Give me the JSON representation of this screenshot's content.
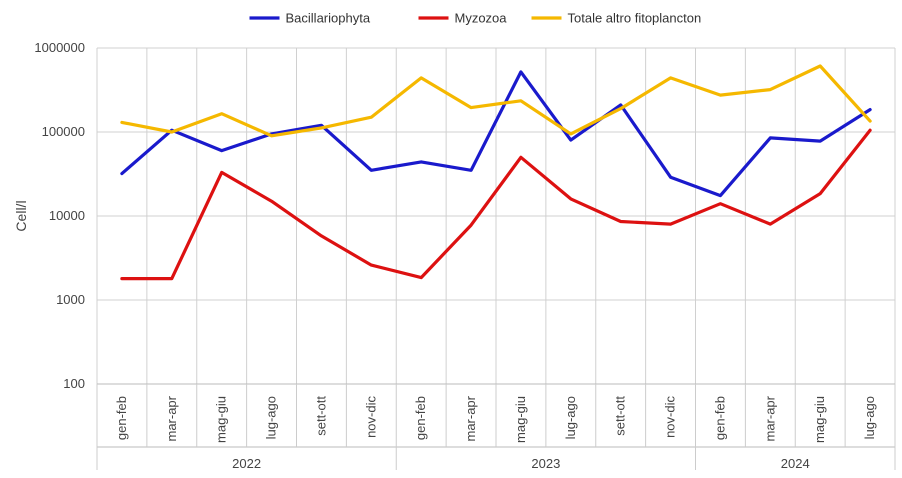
{
  "chart_data": {
    "type": "line",
    "y_scale": "log",
    "ylim": [
      100,
      1000000
    ],
    "ylabel": "Cell/l",
    "y_ticks": [
      100,
      1000,
      10000,
      100000,
      1000000
    ],
    "y_tick_labels": [
      "100",
      "1000",
      "10000",
      "100000",
      "1000000"
    ],
    "categories": [
      "gen-feb",
      "mar-apr",
      "mag-giu",
      "lug-ago",
      "sett-ott",
      "nov-dic",
      "gen-feb",
      "mar-apr",
      "mag-giu",
      "lug-ago",
      "sett-ott",
      "nov-dic",
      "gen-feb",
      "mar-apr",
      "mag-giu",
      "lug-ago"
    ],
    "groups": [
      {
        "label": "2022",
        "start": 0,
        "end": 5
      },
      {
        "label": "2023",
        "start": 6,
        "end": 11
      },
      {
        "label": "2024",
        "start": 12,
        "end": 15
      }
    ],
    "legend_position": "top",
    "grid": "vertical",
    "series": [
      {
        "name": "Bacillariophyta",
        "color": "#1a1acc",
        "values": [
          32000,
          105000,
          60000,
          95000,
          120000,
          35000,
          44000,
          35000,
          520000,
          80000,
          210000,
          29000,
          17500,
          85000,
          78000,
          185000
        ]
      },
      {
        "name": "Myzozoa",
        "color": "#dd1111",
        "values": [
          1800,
          1800,
          33000,
          15000,
          5800,
          2600,
          1850,
          7800,
          50000,
          16000,
          8600,
          8000,
          14000,
          8000,
          18500,
          105000
        ]
      },
      {
        "name": "Totale altro fitoplancton",
        "color": "#f5b800",
        "values": [
          130000,
          100000,
          165000,
          90000,
          112000,
          150000,
          440000,
          195000,
          235000,
          95000,
          190000,
          440000,
          275000,
          320000,
          610000,
          135000
        ]
      }
    ]
  }
}
